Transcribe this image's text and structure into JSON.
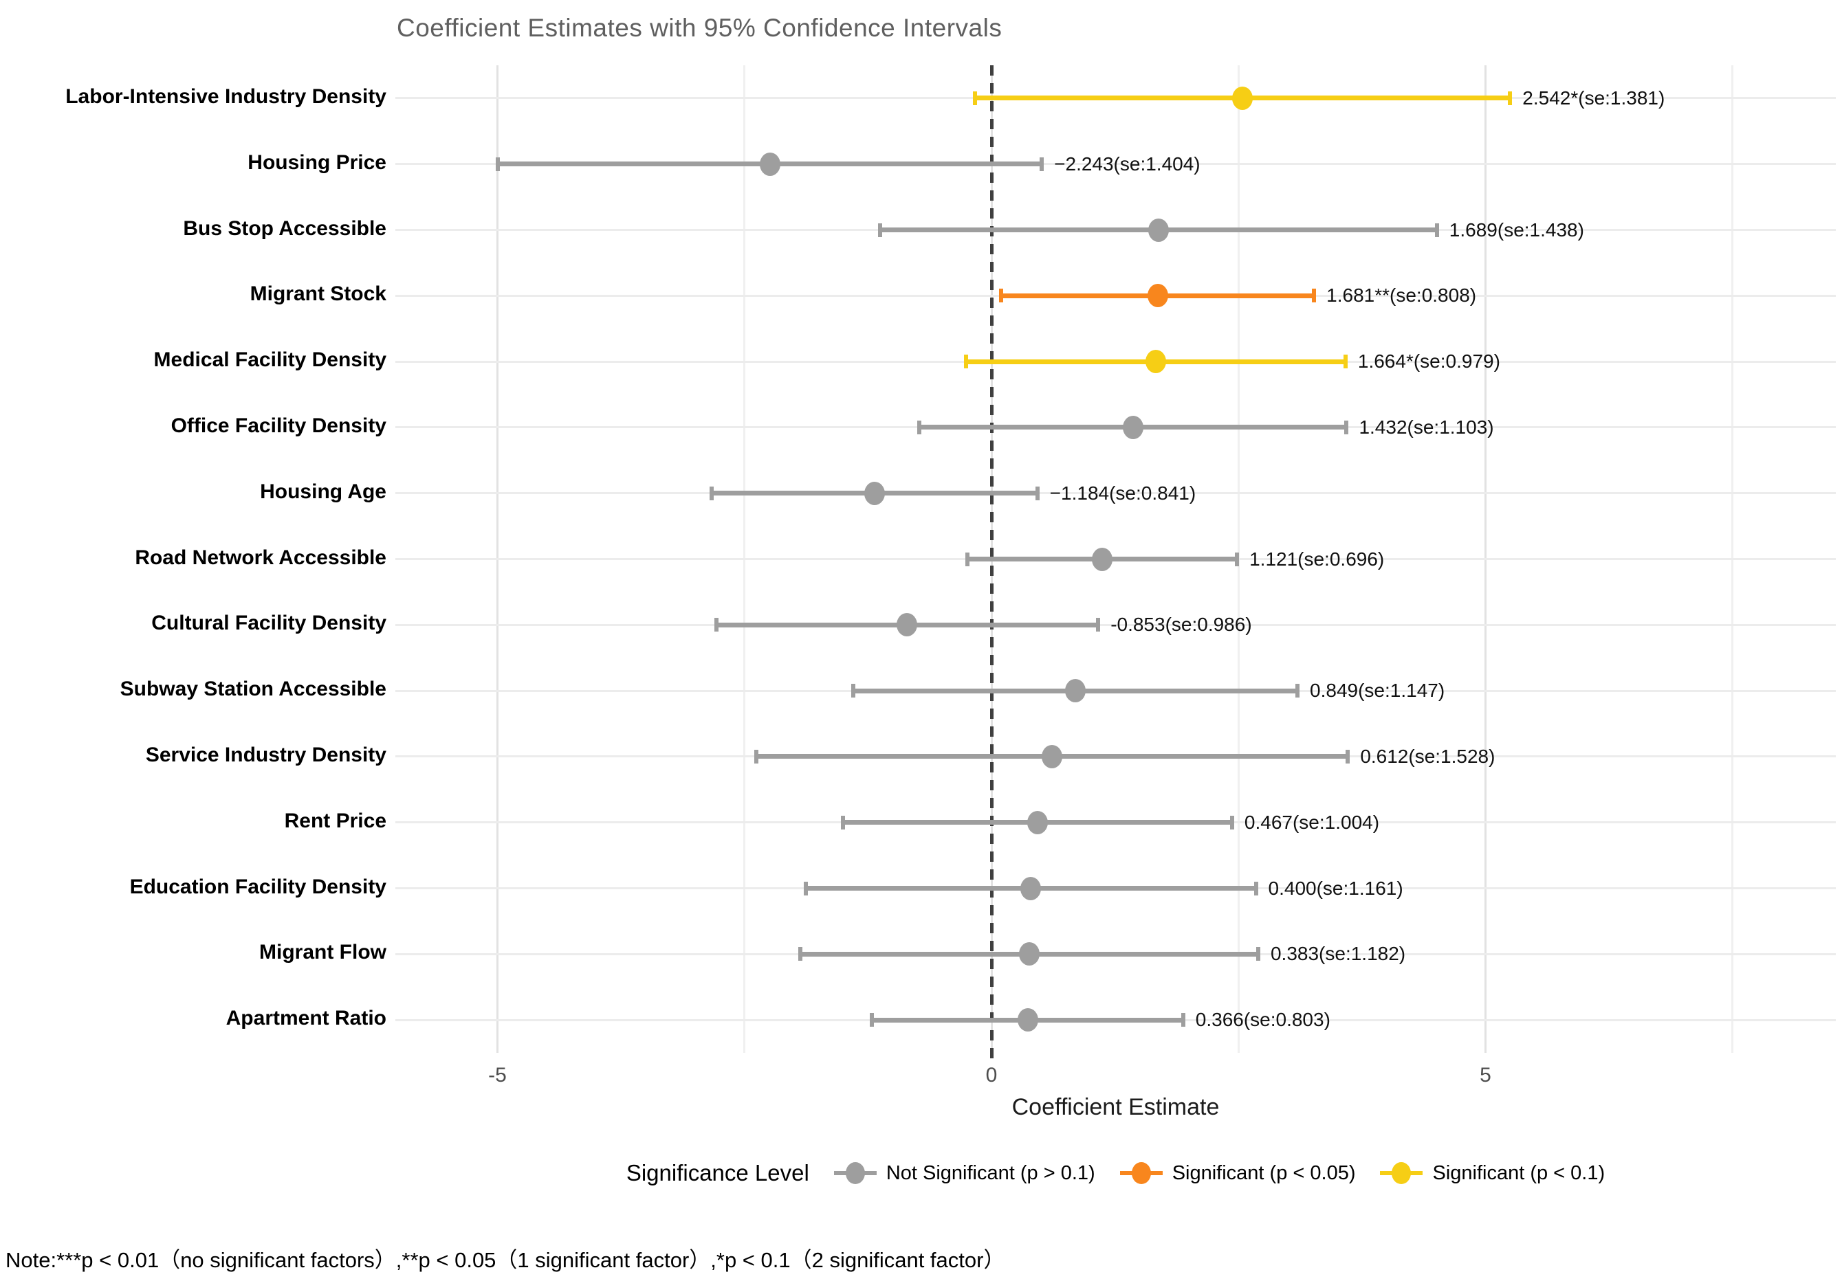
{
  "title": "Coefficient Estimates with 95% Confidence Intervals",
  "note": "Note:***p < 0.01（no significant factors）,**p < 0.05（1 significant factor）,*p < 0.1（2 significant factor）",
  "legend": {
    "title": "Significance Level",
    "items": [
      {
        "label": "Not Significant (p > 0.1)",
        "color_key": "not_significant"
      },
      {
        "label": "Significant (p < 0.05)",
        "color_key": "significant_p005"
      },
      {
        "label": "Significant (p < 0.1)",
        "color_key": "significant_p01"
      }
    ]
  },
  "chart_data": {
    "type": "forest-pointrange",
    "title": "Coefficient Estimates with 95% Confidence Intervals",
    "xlabel": "Coefficient Estimate",
    "ylabel": "",
    "xlim": [
      -6.05,
      8.55
    ],
    "x_ticks": [
      {
        "value": -5,
        "label": "-5"
      },
      {
        "value": 0,
        "label": "0"
      },
      {
        "value": 5,
        "label": "5"
      }
    ],
    "grid": {
      "major_x": [
        -5,
        0,
        5
      ],
      "minor_x": [
        -2.5,
        2.5,
        7.5
      ],
      "horizontal_per_category": true
    },
    "zero_reference_line": {
      "value": 0,
      "style": "dashed",
      "color": "#3f3f3f"
    },
    "colors": {
      "not_significant": "#9e9e9e",
      "significant_p005": "#f8861d",
      "significant_p01": "#f6ce15"
    },
    "legend_position": "bottom",
    "rows": [
      {
        "category": "Labor-Intensive Industry Density",
        "estimate": 2.542,
        "se": 1.381,
        "ci_lower": -0.165,
        "ci_upper": 5.249,
        "significance": "p < 0.1",
        "color_key": "significant_p01",
        "label": "2.542*(se:1.381)"
      },
      {
        "category": "Housing Price",
        "estimate": -2.243,
        "se": 1.404,
        "ci_lower": -4.995,
        "ci_upper": 0.509,
        "significance": "p > 0.1",
        "color_key": "not_significant",
        "label": "−2.243(se:1.404)"
      },
      {
        "category": "Bus Stop Accessible",
        "estimate": 1.689,
        "se": 1.438,
        "ci_lower": -1.13,
        "ci_upper": 4.508,
        "significance": "p > 0.1",
        "color_key": "not_significant",
        "label": "1.689(se:1.438)"
      },
      {
        "category": "Migrant Stock",
        "estimate": 1.681,
        "se": 0.808,
        "ci_lower": 0.097,
        "ci_upper": 3.265,
        "significance": "p < 0.05",
        "color_key": "significant_p005",
        "label": "1.681**(se:0.808)"
      },
      {
        "category": "Medical Facility Density",
        "estimate": 1.664,
        "se": 0.979,
        "ci_lower": -0.255,
        "ci_upper": 3.583,
        "significance": "p < 0.1",
        "color_key": "significant_p01",
        "label": "1.664*(se:0.979)"
      },
      {
        "category": "Office Facility Density",
        "estimate": 1.432,
        "se": 1.103,
        "ci_lower": -0.73,
        "ci_upper": 3.594,
        "significance": "p > 0.1",
        "color_key": "not_significant",
        "label": "1.432(se:1.103)"
      },
      {
        "category": "Housing Age",
        "estimate": -1.184,
        "se": 0.841,
        "ci_lower": -2.832,
        "ci_upper": 0.464,
        "significance": "p > 0.1",
        "color_key": "not_significant",
        "label": "−1.184(se:0.841)"
      },
      {
        "category": "Road Network Accessible",
        "estimate": 1.121,
        "se": 0.696,
        "ci_lower": -0.243,
        "ci_upper": 2.485,
        "significance": "p > 0.1",
        "color_key": "not_significant",
        "label": "1.121(se:0.696)"
      },
      {
        "category": "Cultural Facility Density",
        "estimate": -0.853,
        "se": 0.986,
        "ci_lower": -2.786,
        "ci_upper": 1.08,
        "significance": "p > 0.1",
        "color_key": "not_significant",
        "label": "-0.853(se:0.986)"
      },
      {
        "category": "Subway Station Accessible",
        "estimate": 0.849,
        "se": 1.147,
        "ci_lower": -1.399,
        "ci_upper": 3.097,
        "significance": "p > 0.1",
        "color_key": "not_significant",
        "label": "0.849(se:1.147)"
      },
      {
        "category": "Service Industry Density",
        "estimate": 0.612,
        "se": 1.528,
        "ci_lower": -2.383,
        "ci_upper": 3.607,
        "significance": "p > 0.1",
        "color_key": "not_significant",
        "label": "0.612(se:1.528)"
      },
      {
        "category": "Rent Price",
        "estimate": 0.467,
        "se": 1.004,
        "ci_lower": -1.501,
        "ci_upper": 2.435,
        "significance": "p > 0.1",
        "color_key": "not_significant",
        "label": "0.467(se:1.004)"
      },
      {
        "category": "Education Facility Density",
        "estimate": 0.4,
        "se": 1.161,
        "ci_lower": -1.876,
        "ci_upper": 2.676,
        "significance": "p > 0.1",
        "color_key": "not_significant",
        "label": "0.400(se:1.161)"
      },
      {
        "category": "Migrant Flow",
        "estimate": 0.383,
        "se": 1.182,
        "ci_lower": -1.934,
        "ci_upper": 2.7,
        "significance": "p > 0.1",
        "color_key": "not_significant",
        "label": "0.383(se:1.182)"
      },
      {
        "category": "Apartment Ratio",
        "estimate": 0.366,
        "se": 0.803,
        "ci_lower": -1.208,
        "ci_upper": 1.94,
        "significance": "p > 0.1",
        "color_key": "not_significant",
        "label": "0.366(se:0.803)"
      }
    ]
  }
}
